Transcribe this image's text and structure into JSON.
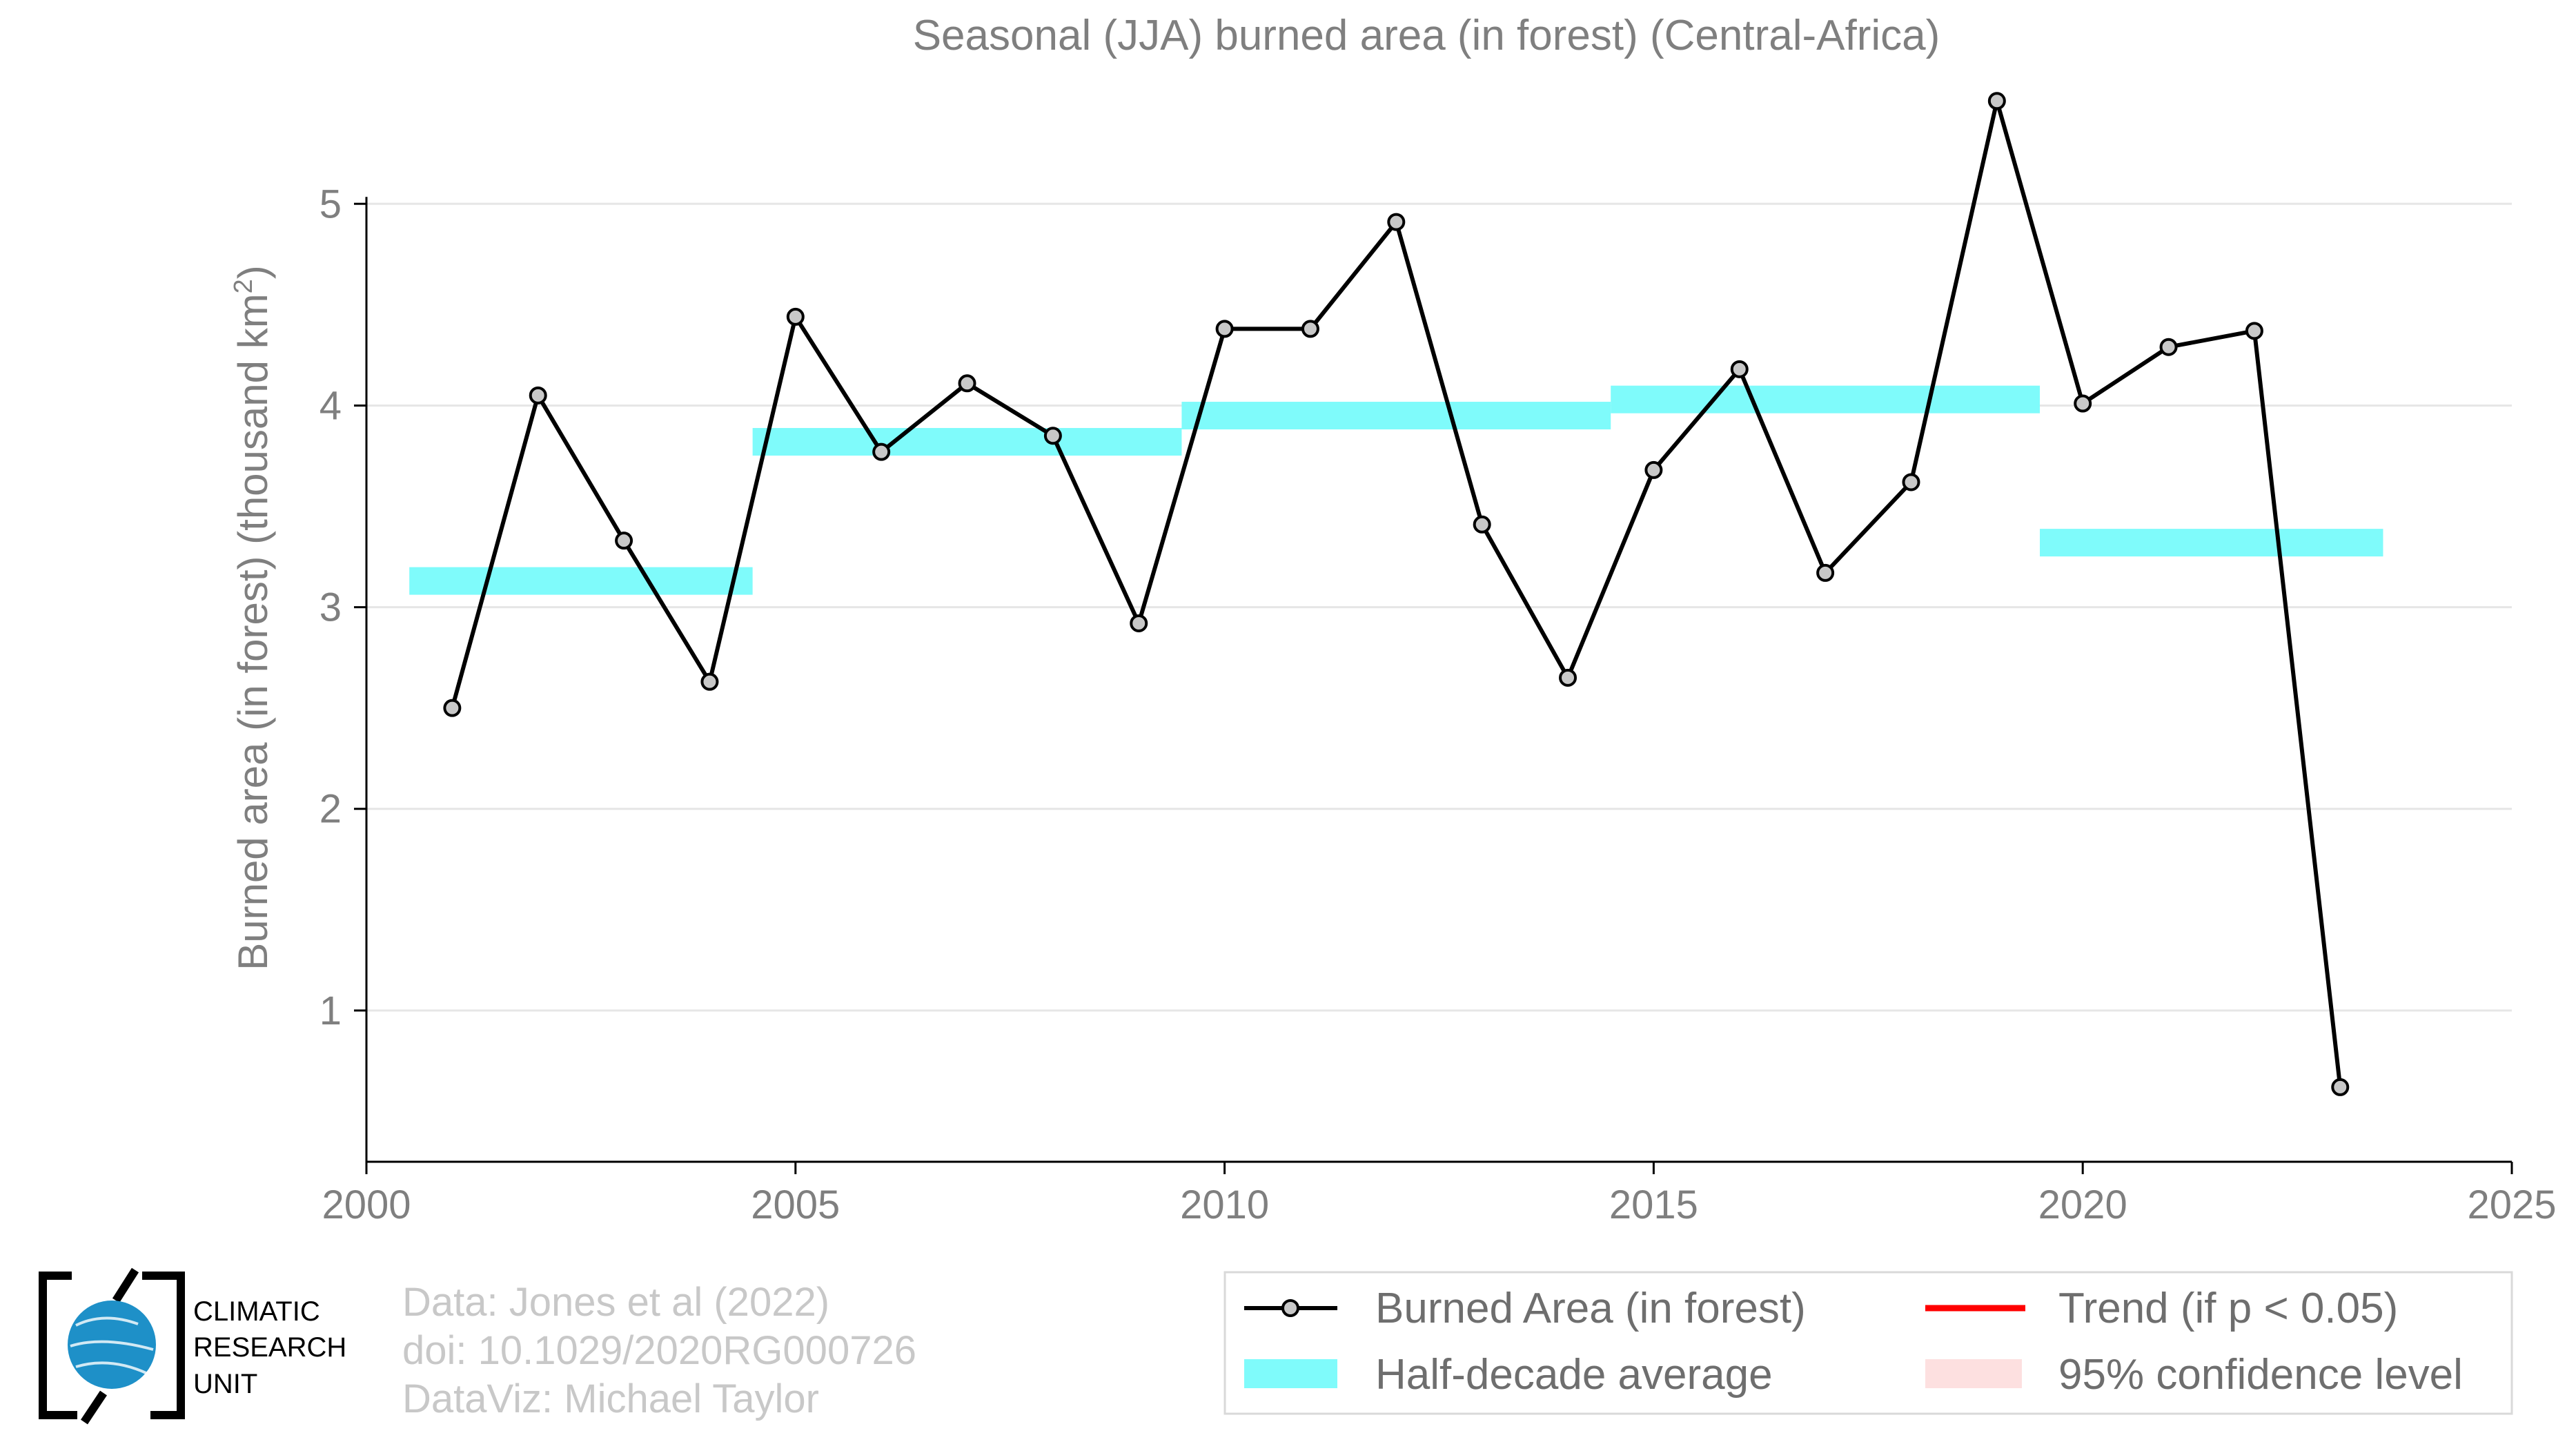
{
  "chart_data": {
    "type": "line",
    "title": "Seasonal (JJA) burned area (in forest) (Central-Africa)",
    "ylabel": "Burned area (in forest) (thousand km",
    "ylabel_sup": "2",
    "ylabel_close": ")",
    "xlim": [
      2000,
      2025
    ],
    "ylim": [
      0.25,
      5.6
    ],
    "xticks": [
      2000,
      2005,
      2010,
      2015,
      2020,
      2025
    ],
    "yticks": [
      1,
      2,
      3,
      4,
      5
    ],
    "grid": true,
    "series": [
      {
        "name": "Burned Area (in forest)",
        "color": "#000000",
        "marker_fill": "#c8c8c8",
        "x": [
          2001,
          2002,
          2003,
          2004,
          2005,
          2006,
          2007,
          2008,
          2009,
          2010,
          2011,
          2012,
          2013,
          2014,
          2015,
          2016,
          2017,
          2018,
          2019,
          2020,
          2021,
          2022,
          2023
        ],
        "y": [
          2.5,
          4.05,
          3.33,
          2.63,
          4.44,
          3.77,
          4.11,
          3.85,
          2.92,
          4.38,
          4.38,
          4.91,
          3.41,
          2.65,
          3.68,
          4.18,
          3.17,
          3.62,
          5.51,
          4.01,
          4.29,
          4.37,
          0.62
        ]
      }
    ],
    "half_decade_average": {
      "name": "Half-decade average",
      "color": "#7ffbfb",
      "segments": [
        {
          "x0": 2000.5,
          "x1": 2004.5,
          "y": 3.13
        },
        {
          "x0": 2004.5,
          "x1": 2009.5,
          "y": 3.82
        },
        {
          "x0": 2009.5,
          "x1": 2014.5,
          "y": 3.95
        },
        {
          "x0": 2014.5,
          "x1": 2019.5,
          "y": 4.03
        },
        {
          "x0": 2019.5,
          "x1": 2023.5,
          "y": 3.32
        }
      ]
    },
    "legend": {
      "placement": "bottom-right",
      "entries": [
        {
          "label": "Burned Area (in forest)",
          "kind": "line-marker",
          "color": "#000000"
        },
        {
          "label": "Trend (if p < 0.05)",
          "kind": "line",
          "color": "#ff0000"
        },
        {
          "label": "Half-decade average",
          "kind": "band",
          "color": "#7ffbfb"
        },
        {
          "label": "95% confidence level",
          "kind": "band",
          "color": "#fde0e0"
        }
      ]
    }
  },
  "credits": {
    "line1": "Data: Jones et al (2022)",
    "line2": "doi: 10.1029/2020RG000726",
    "line3": "DataViz: Michael Taylor"
  },
  "logo": {
    "line1": "CLIMATIC",
    "line2": "RESEARCH",
    "line3": "UNIT",
    "globe_color": "#1e90c8"
  }
}
